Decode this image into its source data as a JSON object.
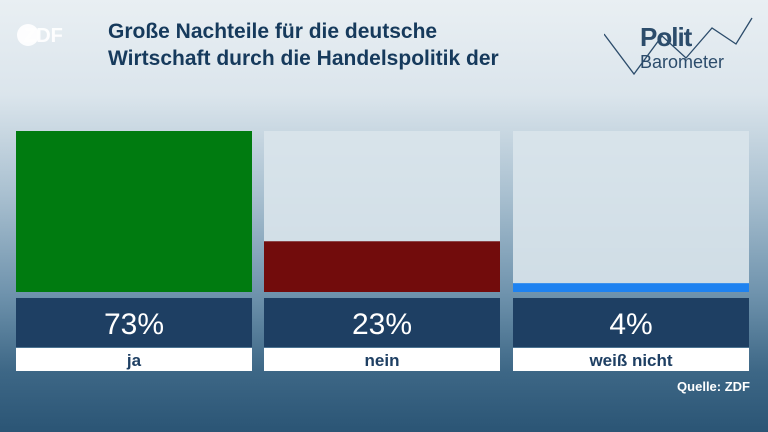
{
  "header": {
    "logo_text": "ZDF",
    "title_line1": "Große Nachteile für die deutsche",
    "title_line2": "Wirtschaft durch die Handelspolitik der",
    "brand_line1": "Polit",
    "brand_line2": "Barometer"
  },
  "source": "Quelle: ZDF",
  "colors": {
    "ja": "#007b10",
    "nein": "#720c0c",
    "weiss_nicht": "#1e82f0",
    "value_box": "#1e3f63",
    "label_box": "#ffffff",
    "title": "#163a5c"
  },
  "chart_data": {
    "type": "bar",
    "title": "Große Nachteile für die deutsche Wirtschaft durch die Handelspolitik der",
    "categories": [
      "ja",
      "nein",
      "weiß nicht"
    ],
    "values": [
      73,
      23,
      4
    ],
    "value_labels": [
      "73%",
      "23%",
      "4%"
    ],
    "ylim": [
      0,
      73
    ],
    "grid": false,
    "legend": "none"
  }
}
